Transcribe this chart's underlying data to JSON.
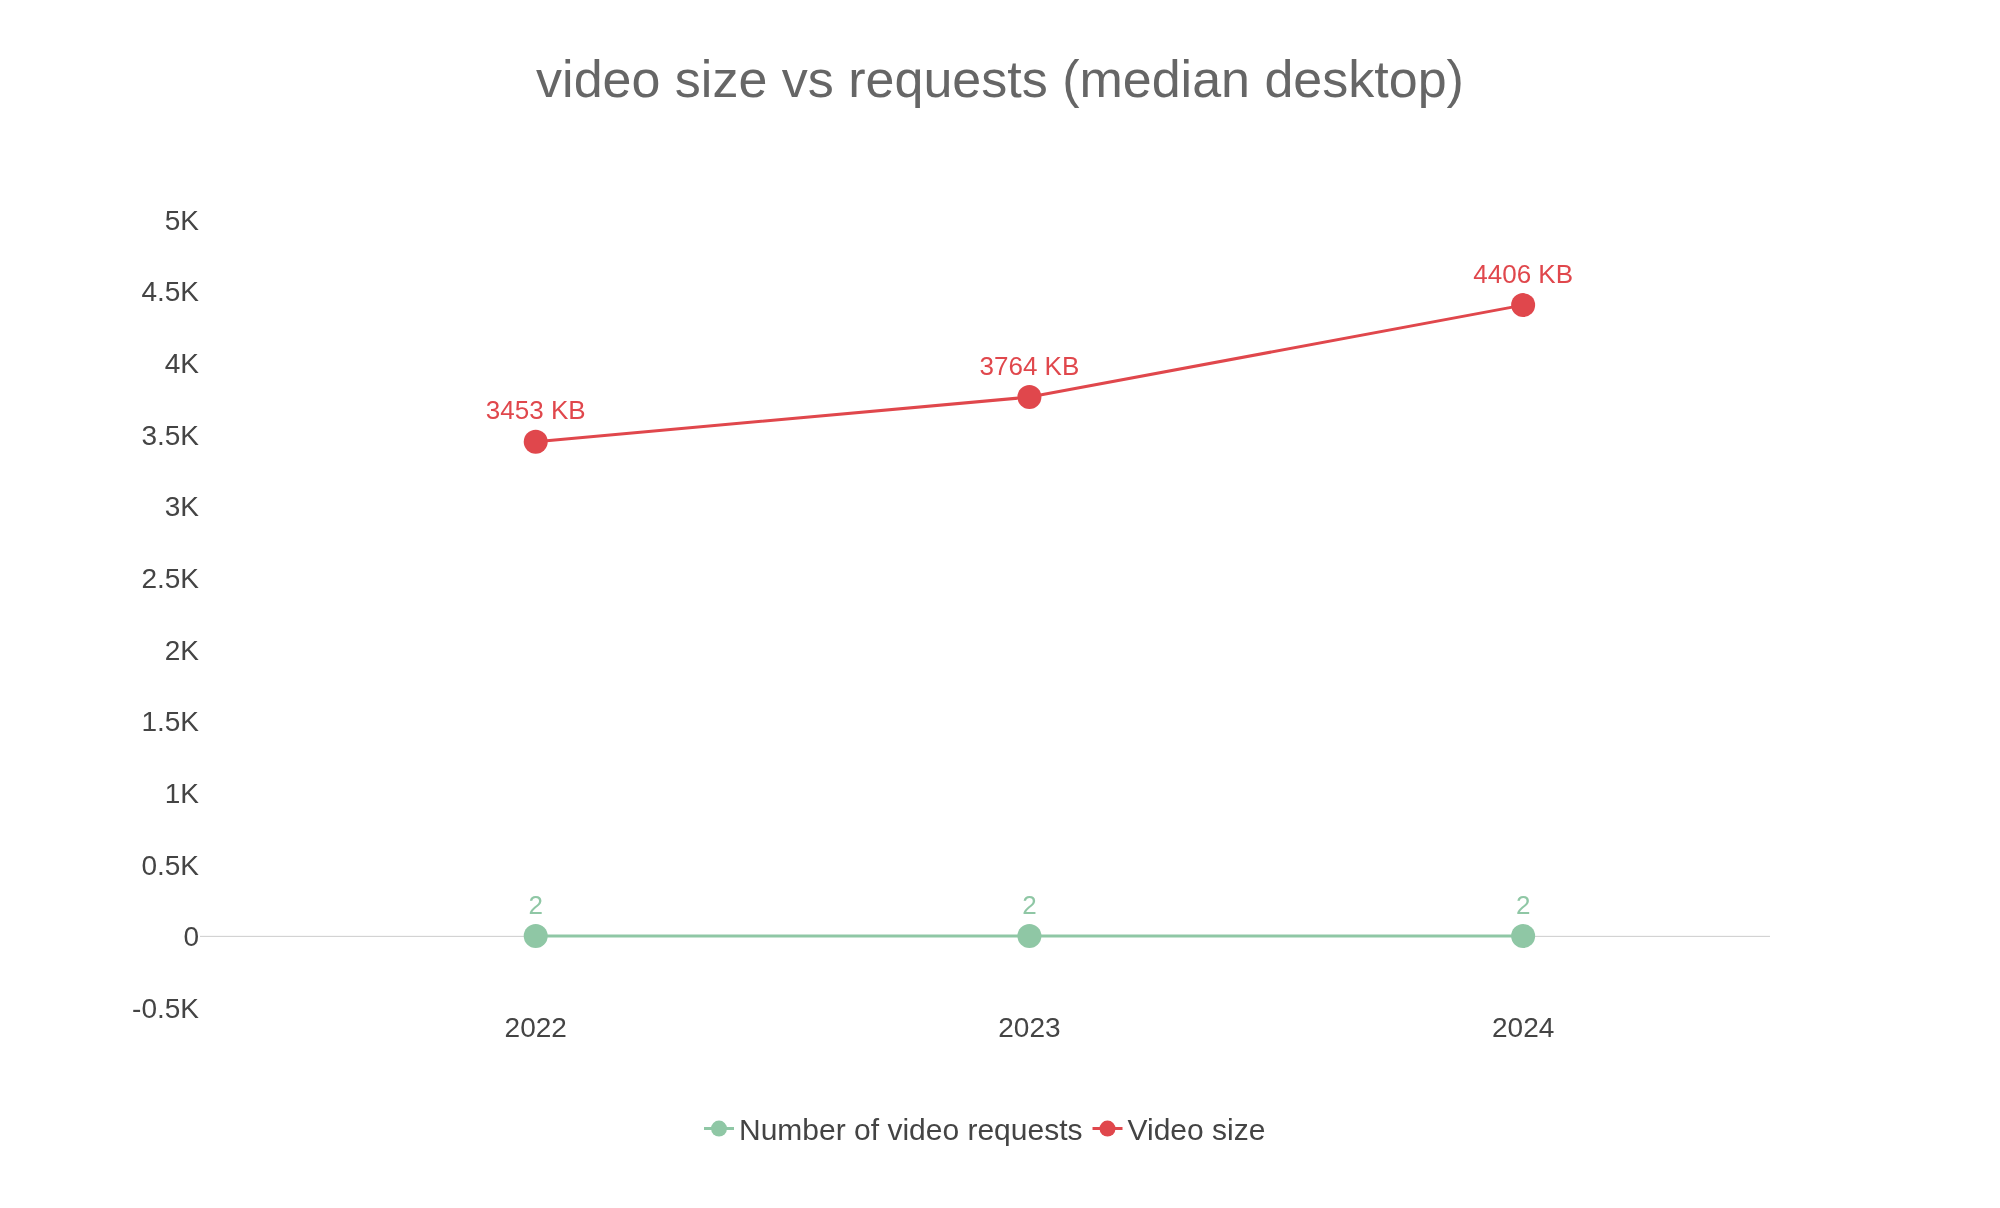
{
  "chart_data": {
    "type": "line",
    "title": "video size vs requests (median desktop)",
    "categories": [
      "2022",
      "2023",
      "2024"
    ],
    "series": [
      {
        "name": "Number of video requests",
        "color": "#8fc7a5",
        "values": [
          2,
          2,
          2
        ],
        "value_labels": [
          "2",
          "2",
          "2"
        ]
      },
      {
        "name": "Video size",
        "color": "#e0474c",
        "values": [
          3453,
          3764,
          4406
        ],
        "value_labels": [
          "3453 KB",
          "3764 KB",
          "4406 KB"
        ]
      }
    ],
    "ylim": [
      -500,
      5000
    ],
    "yticks": [
      {
        "value": -500,
        "label": "-0.5K"
      },
      0,
      {
        "value": 500,
        "label": "0.5K"
      },
      {
        "value": 1000,
        "label": "1K"
      },
      {
        "value": 1500,
        "label": "1.5K"
      },
      {
        "value": 2000,
        "label": "2K"
      },
      {
        "value": 2500,
        "label": "2.5K"
      },
      {
        "value": 3000,
        "label": "3K"
      },
      {
        "value": 3500,
        "label": "3.5K"
      },
      {
        "value": 4000,
        "label": "4K"
      },
      {
        "value": 4500,
        "label": "4.5K"
      },
      {
        "value": 5000,
        "label": "5K"
      }
    ],
    "ref_lines": [
      {
        "axis": "y",
        "value": 0,
        "color": "#cccccc"
      }
    ],
    "grid": false,
    "legend": "bottom",
    "marker": "circle",
    "line_style": "solid"
  }
}
